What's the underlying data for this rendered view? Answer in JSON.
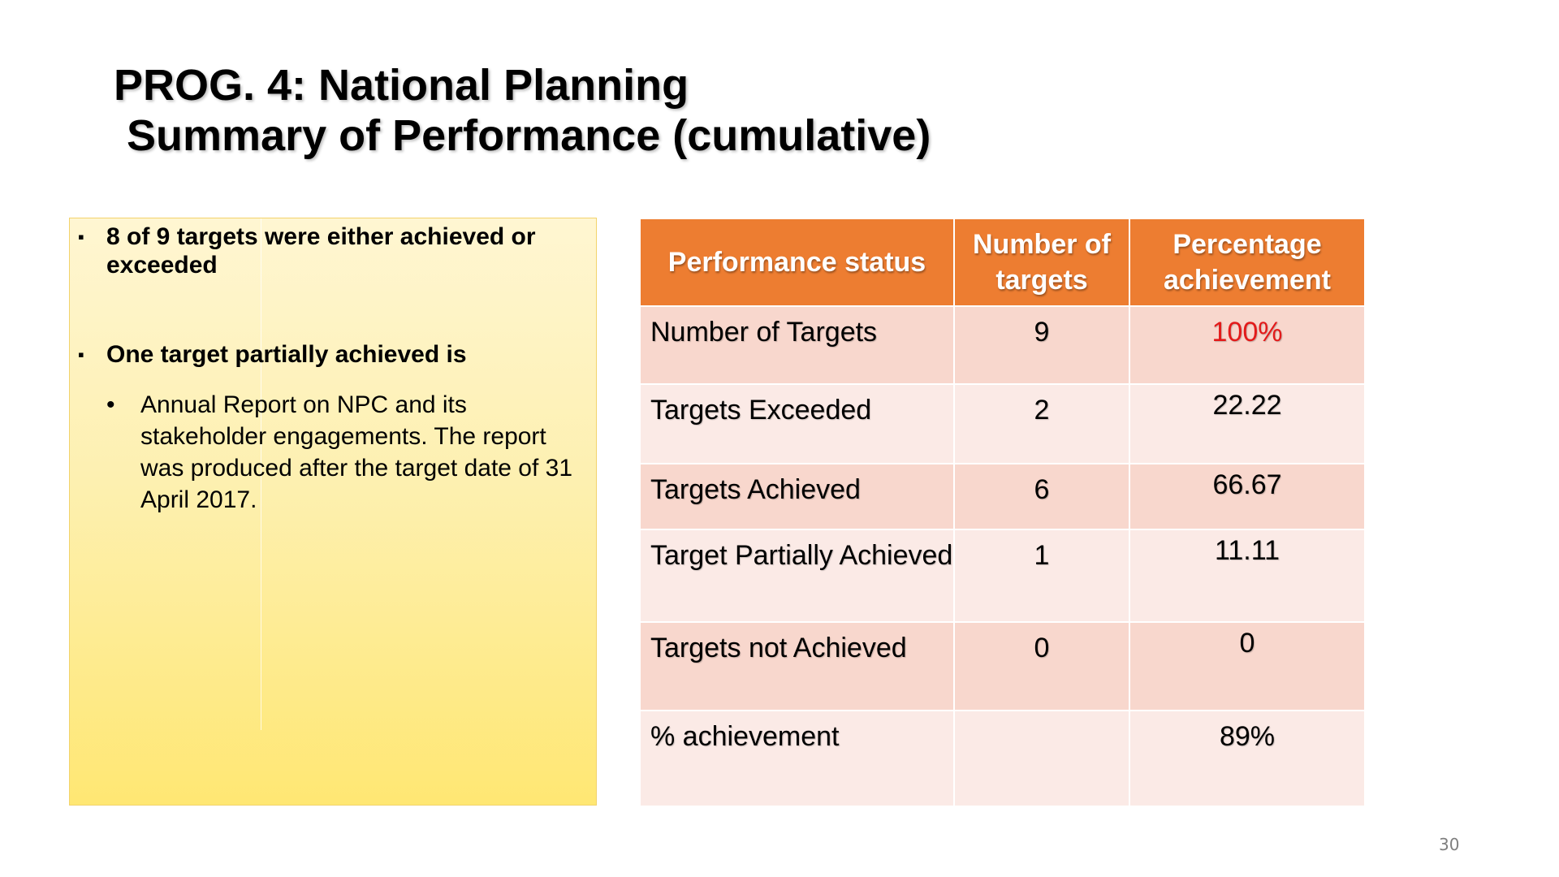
{
  "title": {
    "line1": "PROG. 4: National Planning",
    "line2": "Summary of Performance (cumulative)"
  },
  "notes": {
    "bullet_marker": "▪",
    "sub_marker": "•",
    "bullets": [
      {
        "text": "8 of 9 targets were either  achieved or exceeded"
      },
      {
        "text": "One target partially achieved is"
      }
    ],
    "sub_bullets": [
      {
        "text": "Annual Report on NPC and its stakeholder engagements. The report was produced after the target date of 31 April 2017."
      }
    ]
  },
  "table": {
    "headers": [
      {
        "label": "Performance status"
      },
      {
        "label": "Number of targets"
      },
      {
        "label": "Percentage achievement"
      }
    ],
    "rows": [
      {
        "status": "Number of Targets",
        "count": "9",
        "percentage": "100%",
        "highlight": true
      },
      {
        "status": "Targets Exceeded",
        "count": "2",
        "percentage": "22.22"
      },
      {
        "status": "Targets Achieved",
        "count": "6",
        "percentage": "66.67"
      },
      {
        "status": "Target Partially Achieved",
        "count": "1",
        "percentage": "11.11"
      },
      {
        "status": "Targets not Achieved",
        "count": "0",
        "percentage": "0"
      },
      {
        "status": "% achievement",
        "count": "",
        "percentage": "89%"
      }
    ]
  },
  "colors": {
    "header_bg": "#ed7d31",
    "row_dark": "#f8d7cd",
    "row_light": "#fbeae6",
    "highlight_text": "#e31a1a",
    "notes_bg_top": "#fff6d2",
    "notes_bg_bottom": "#ffe773"
  },
  "footer": {
    "page_number": "30"
  }
}
